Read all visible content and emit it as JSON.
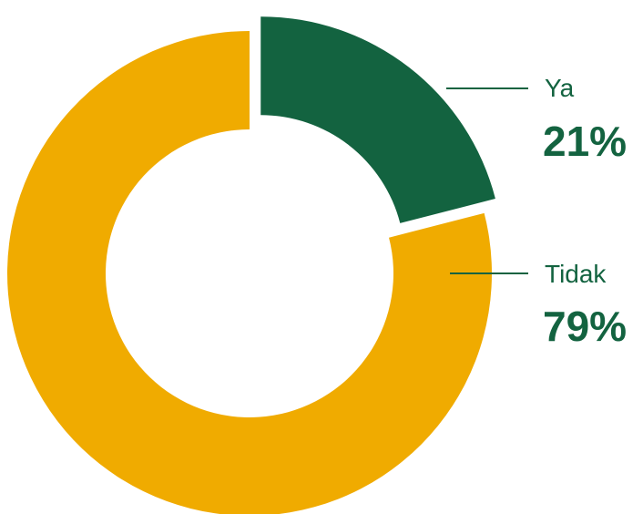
{
  "chart_data": {
    "type": "pie",
    "style": "donut",
    "slices": [
      {
        "label": "Ya",
        "value": 21,
        "display": "21%",
        "color": "#136340",
        "exploded": true
      },
      {
        "label": "Tidak",
        "value": 79,
        "display": "79%",
        "color": "#F0AB00",
        "exploded": false
      }
    ],
    "label_color": "#136340",
    "value_color": "#136340",
    "legend": "none"
  }
}
